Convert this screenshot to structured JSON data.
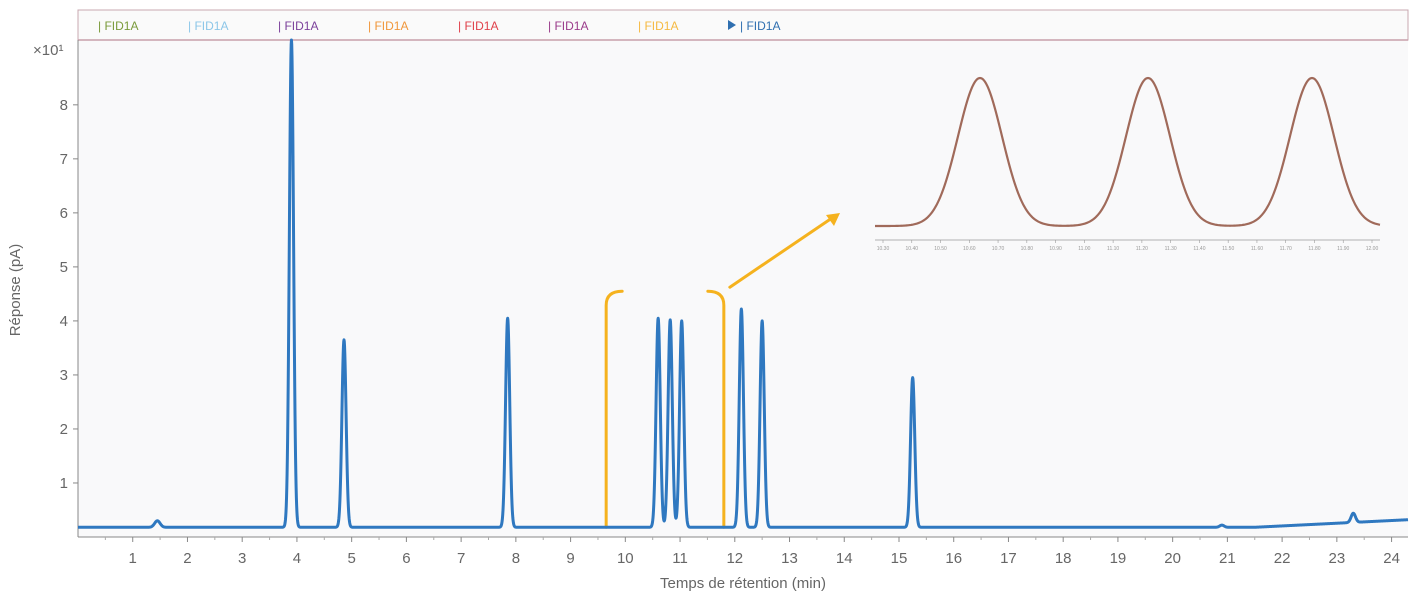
{
  "chart_data": {
    "type": "line",
    "xlabel": "Temps de rétention (min)",
    "ylabel": "Réponse (pA)",
    "y_multiplier_label": "×10¹",
    "xlim": [
      0,
      24.3
    ],
    "ylim": [
      0,
      9.2
    ],
    "x_ticks": [
      1,
      2,
      3,
      4,
      5,
      6,
      7,
      8,
      9,
      10,
      11,
      12,
      13,
      14,
      15,
      16,
      17,
      18,
      19,
      20,
      21,
      22,
      23,
      24
    ],
    "y_ticks": [
      1,
      2,
      3,
      4,
      5,
      6,
      7,
      8
    ],
    "grid": false,
    "baseline": 0.18,
    "legend": {
      "placement": "top",
      "entries": [
        {
          "name": "| FID1A",
          "color": "#7a9a3a"
        },
        {
          "name": "| FID1A",
          "color": "#8cc6e8"
        },
        {
          "name": "| FID1A",
          "color": "#7b3f9a"
        },
        {
          "name": "| FID1A",
          "color": "#f0963a"
        },
        {
          "name": "| FID1A",
          "color": "#e0404a"
        },
        {
          "name": "| FID1A",
          "color": "#9a3a8a"
        },
        {
          "name": "| FID1A",
          "color": "#f5b940"
        },
        {
          "name": "| FID1A",
          "color": "#2f6fb0",
          "active": true
        }
      ]
    },
    "peaks": [
      {
        "x": 1.45,
        "y": 0.3
      },
      {
        "x": 3.9,
        "y": 9.2
      },
      {
        "x": 4.86,
        "y": 3.65
      },
      {
        "x": 7.85,
        "y": 4.05
      },
      {
        "x": 10.6,
        "y": 4.05
      },
      {
        "x": 10.82,
        "y": 4.02
      },
      {
        "x": 11.03,
        "y": 4.0
      },
      {
        "x": 12.12,
        "y": 4.22
      },
      {
        "x": 12.5,
        "y": 4.0
      },
      {
        "x": 15.25,
        "y": 2.95
      },
      {
        "x": 20.9,
        "y": 0.22
      },
      {
        "x": 23.3,
        "y": 0.35
      }
    ],
    "series_color": "#2f78c0",
    "highlight_color": "#f5b21e",
    "inset": {
      "peak_color": "#a06a5a",
      "peaks": 3,
      "x_ticks": [
        "10.30",
        "10.40",
        "10.50",
        "10.60",
        "10.70",
        "10.80",
        "10.90",
        "11.00",
        "11.10",
        "11.20",
        "11.30",
        "11.40",
        "11.50",
        "11.60",
        "11.70",
        "11.80",
        "11.90",
        "12.00"
      ]
    }
  }
}
